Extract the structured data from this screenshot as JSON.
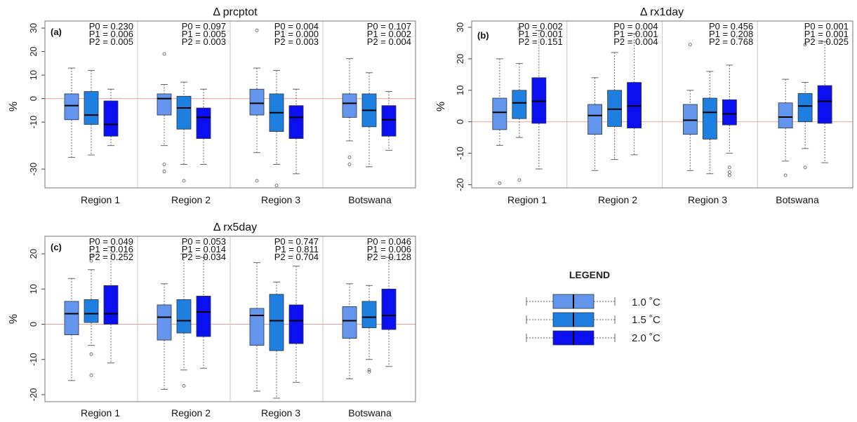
{
  "colors": {
    "c1": "#6495ED",
    "c2": "#1E7FE0",
    "c3": "#0A10F0"
  },
  "legend": {
    "title": "LEGEND",
    "items": [
      {
        "label": "1.0 ˚C",
        "color": "#6495ED"
      },
      {
        "label": "1.5 ˚C",
        "color": "#1E7FE0"
      },
      {
        "label": "2.0 ˚C",
        "color": "#0A10F0"
      }
    ]
  },
  "chart_data": [
    {
      "type": "box",
      "title": "Δ prcptot",
      "panel": "(a)",
      "ylabel": "%",
      "ylim": [
        -38,
        33
      ],
      "yticks": [
        30,
        20,
        10,
        0,
        -10,
        -30
      ],
      "categories": [
        "Region 1",
        "Region 2",
        "Region 3",
        "Botswana"
      ],
      "p_values": [
        [
          "P0 = 0.230",
          "P1 = 0.006",
          "P2 = 0.005"
        ],
        [
          "P0 = 0.097",
          "P1 = 0.005",
          "P2 = 0.003"
        ],
        [
          "P0 = 0.004",
          "P1 = 0.000",
          "P2 = 0.003"
        ],
        [
          "P0 = 0.107",
          "P1 = 0.002",
          "P2 = 0.004"
        ]
      ],
      "groups": [
        [
          {
            "min": -25,
            "q1": -9,
            "median": -3,
            "q3": 2,
            "max": 13,
            "outliers": []
          },
          {
            "min": -24,
            "q1": -11,
            "median": -7,
            "q3": 3,
            "max": 12,
            "outliers": []
          },
          {
            "min": -20,
            "q1": -16,
            "median": -11,
            "q3": -1,
            "max": 4,
            "outliers": []
          }
        ],
        [
          {
            "min": -20,
            "q1": -7,
            "median": 0,
            "q3": 2,
            "max": 6,
            "outliers": [
              19,
              -28,
              -31
            ]
          },
          {
            "min": -28,
            "q1": -13,
            "median": -4,
            "q3": 1,
            "max": 7,
            "outliers": [
              -35
            ]
          },
          {
            "min": -28,
            "q1": -17,
            "median": -8,
            "q3": -4,
            "max": 4,
            "outliers": []
          }
        ],
        [
          {
            "min": -23,
            "q1": -7,
            "median": -2,
            "q3": 4,
            "max": 13,
            "outliers": [
              29,
              -35
            ]
          },
          {
            "min": -28,
            "q1": -14,
            "median": -6,
            "q3": 2,
            "max": 12,
            "outliers": [
              -37
            ]
          },
          {
            "min": -32,
            "q1": -17,
            "median": -8,
            "q3": -3,
            "max": 4,
            "outliers": []
          }
        ],
        [
          {
            "min": -18,
            "q1": -8,
            "median": -2,
            "q3": 2,
            "max": 17,
            "outliers": [
              -25,
              -28
            ]
          },
          {
            "min": -29,
            "q1": -12,
            "median": -5,
            "q3": 2,
            "max": 11,
            "outliers": []
          },
          {
            "min": -22,
            "q1": -16,
            "median": -9,
            "q3": -3,
            "max": 3,
            "outliers": []
          }
        ]
      ]
    },
    {
      "type": "box",
      "title": "Δ rx1day",
      "panel": "(b)",
      "ylabel": "%",
      "ylim": [
        -21,
        32
      ],
      "yticks": [
        30,
        20,
        10,
        0,
        -10,
        -20
      ],
      "categories": [
        "Region 1",
        "Region 2",
        "Region 3",
        "Botswana"
      ],
      "p_values": [
        [
          "P0 = 0.002",
          "P1 = 0.001",
          "P2 = 0.151"
        ],
        [
          "P0 = 0.004",
          "P1 = 0.001",
          "P2 = 0.004"
        ],
        [
          "P0 = 0.456",
          "P1 = 0.208",
          "P2 = 0.768"
        ],
        [
          "P0 = 0.001",
          "P1 = 0.001",
          "P2 = 0.025"
        ]
      ],
      "groups": [
        [
          {
            "min": -7.5,
            "q1": -2.5,
            "median": 3,
            "q3": 7.5,
            "max": 20,
            "outliers": [
              -19.5
            ]
          },
          {
            "min": -5,
            "q1": 1,
            "median": 6,
            "q3": 10,
            "max": 18.5,
            "outliers": [
              29.5,
              -18.5
            ]
          },
          {
            "min": -15,
            "q1": -0.5,
            "median": 6.5,
            "q3": 14,
            "max": 29,
            "outliers": []
          }
        ],
        [
          {
            "min": -15.5,
            "q1": -4,
            "median": 2,
            "q3": 5.5,
            "max": 14,
            "outliers": []
          },
          {
            "min": -12,
            "q1": -1.5,
            "median": 4,
            "q3": 10,
            "max": 22,
            "outliers": []
          },
          {
            "min": -10.5,
            "q1": -2,
            "median": 5,
            "q3": 12.5,
            "max": 28,
            "outliers": []
          }
        ],
        [
          {
            "min": -15.5,
            "q1": -4,
            "median": 0.5,
            "q3": 5.5,
            "max": 10,
            "outliers": [
              24.5
            ]
          },
          {
            "min": -16.5,
            "q1": -5.5,
            "median": 3,
            "q3": 7.5,
            "max": 16,
            "outliers": []
          },
          {
            "min": -10,
            "q1": -1,
            "median": 2.5,
            "q3": 7,
            "max": 18,
            "outliers": [
              -14.5,
              -16,
              -17
            ]
          }
        ],
        [
          {
            "min": -12.5,
            "q1": -2,
            "median": 1.5,
            "q3": 6,
            "max": 13.5,
            "outliers": [
              -17
            ]
          },
          {
            "min": -8.5,
            "q1": 0,
            "median": 5,
            "q3": 9,
            "max": 12.5,
            "outliers": [
              24.5,
              -14.5
            ]
          },
          {
            "min": -13,
            "q1": -0.5,
            "median": 6.5,
            "q3": 11.5,
            "max": 25.5,
            "outliers": []
          }
        ]
      ]
    },
    {
      "type": "box",
      "title": "Δ rx5day",
      "panel": "(c)",
      "ylabel": "%",
      "ylim": [
        -22,
        25
      ],
      "yticks": [
        20,
        10,
        0,
        -10,
        -20
      ],
      "categories": [
        "Region 1",
        "Region 2",
        "Region 3",
        "Botswana"
      ],
      "p_values": [
        [
          "P0 = 0.049",
          "P1 = 0.016",
          "P2 = 0.252"
        ],
        [
          "P0 = 0.053",
          "P1 = 0.014",
          "P2 = 0.034"
        ],
        [
          "P0 = 0.747",
          "P1 = 0.811",
          "P2 = 0.704"
        ],
        [
          "P0 = 0.046",
          "P1 = 0.006",
          "P2 = 0.128"
        ]
      ],
      "groups": [
        [
          {
            "min": -16,
            "q1": -3,
            "median": 3,
            "q3": 6.5,
            "max": 13,
            "outliers": []
          },
          {
            "min": -6,
            "q1": 0.5,
            "median": 3,
            "q3": 7,
            "max": 15.5,
            "outliers": [
              19.5,
              18,
              -8.5,
              -14.5
            ]
          },
          {
            "min": -11,
            "q1": 0,
            "median": 3,
            "q3": 11,
            "max": 22,
            "outliers": []
          }
        ],
        [
          {
            "min": -18.5,
            "q1": -4.5,
            "median": 2,
            "q3": 5.5,
            "max": 11.5,
            "outliers": []
          },
          {
            "min": -13,
            "q1": -2.5,
            "median": 1,
            "q3": 7,
            "max": 20,
            "outliers": [
              -17.5
            ]
          },
          {
            "min": -12.5,
            "q1": -3.5,
            "median": 3.5,
            "q3": 8,
            "max": 19,
            "outliers": []
          }
        ],
        [
          {
            "min": -19,
            "q1": -6,
            "median": 2.5,
            "q3": 4.5,
            "max": 17.5,
            "outliers": []
          },
          {
            "min": -21,
            "q1": -7.5,
            "median": 1,
            "q3": 8.5,
            "max": 12,
            "outliers": []
          },
          {
            "min": -16.5,
            "q1": -5.5,
            "median": 1,
            "q3": 5.5,
            "max": 16.5,
            "outliers": []
          }
        ],
        [
          {
            "min": -15.5,
            "q1": -4,
            "median": 1,
            "q3": 5,
            "max": 11.5,
            "outliers": []
          },
          {
            "min": -10,
            "q1": -1,
            "median": 2,
            "q3": 6.5,
            "max": 11,
            "outliers": [
              18.5,
              -13,
              -13.5
            ]
          },
          {
            "min": -12,
            "q1": -1.5,
            "median": 2.5,
            "q3": 10,
            "max": 19,
            "outliers": []
          }
        ]
      ]
    }
  ]
}
